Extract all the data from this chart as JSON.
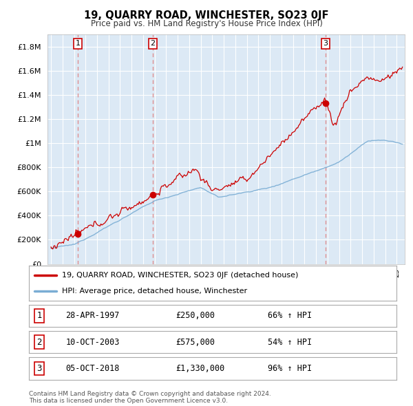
{
  "title": "19, QUARRY ROAD, WINCHESTER, SO23 0JF",
  "subtitle": "Price paid vs. HM Land Registry's House Price Index (HPI)",
  "sale_prices": [
    250000,
    575000,
    1330000
  ],
  "sale_labels": [
    "1",
    "2",
    "3"
  ],
  "legend_line1": "19, QUARRY ROAD, WINCHESTER, SO23 0JF (detached house)",
  "legend_line2": "HPI: Average price, detached house, Winchester",
  "table_rows": [
    [
      "1",
      "28-APR-1997",
      "£250,000",
      "66% ↑ HPI"
    ],
    [
      "2",
      "10-OCT-2003",
      "£575,000",
      "54% ↑ HPI"
    ],
    [
      "3",
      "05-OCT-2018",
      "£1,330,000",
      "96% ↑ HPI"
    ]
  ],
  "footer": "Contains HM Land Registry data © Crown copyright and database right 2024.\nThis data is licensed under the Open Government Licence v3.0.",
  "price_line_color": "#cc0000",
  "hpi_line_color": "#7aadd4",
  "dashed_line_color": "#e08080",
  "marker_color": "#cc0000",
  "bg_color": "#dce9f5",
  "grid_color": "#ffffff",
  "ylim": [
    0,
    1900000
  ],
  "yticks": [
    0,
    200000,
    400000,
    600000,
    800000,
    1000000,
    1200000,
    1400000,
    1600000,
    1800000
  ],
  "ytick_labels": [
    "£0",
    "£200K",
    "£400K",
    "£600K",
    "£800K",
    "£1M",
    "£1.2M",
    "£1.4M",
    "£1.6M",
    "£1.8M"
  ],
  "xlim_start": 1994.7,
  "xlim_end": 2025.7
}
